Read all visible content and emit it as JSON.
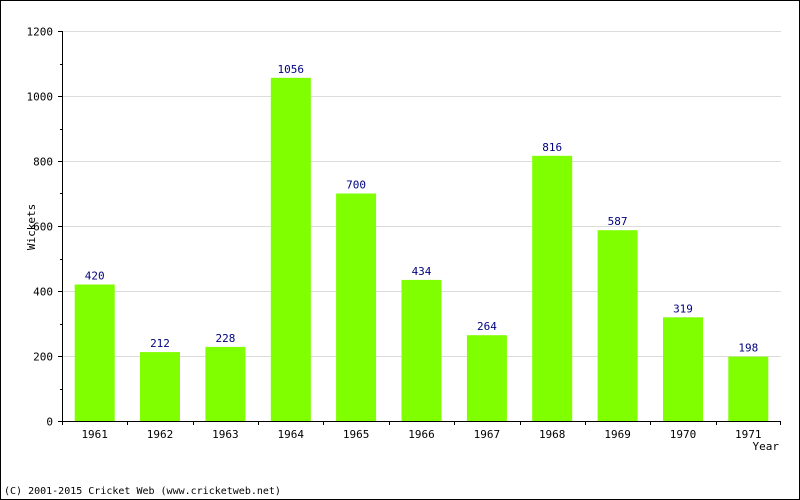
{
  "chart_data": {
    "type": "bar",
    "title": "",
    "xlabel": "Year",
    "ylabel": "Wickets",
    "categories": [
      "1961",
      "1962",
      "1963",
      "1964",
      "1965",
      "1966",
      "1967",
      "1968",
      "1969",
      "1970",
      "1971"
    ],
    "values": [
      420,
      212,
      228,
      1056,
      700,
      434,
      264,
      816,
      587,
      319,
      198
    ],
    "ylim": [
      0,
      1200
    ],
    "yticks": [
      0,
      200,
      400,
      600,
      800,
      1000,
      1200
    ],
    "grid": true,
    "bar_color": "#80ff00",
    "label_color": "#000080"
  },
  "footer": {
    "copyright": "(C) 2001-2015 Cricket Web (www.cricketweb.net)"
  }
}
